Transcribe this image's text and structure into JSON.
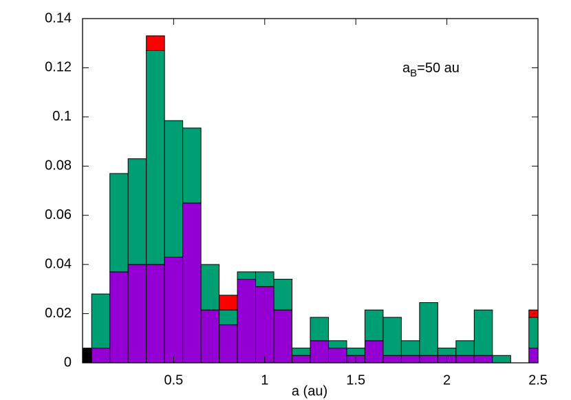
{
  "chart_data": {
    "type": "stacked_histogram",
    "xlabel": "a (au)",
    "annotation": [
      "a",
      "B",
      "=50 au"
    ],
    "bins": [
      0,
      0.05,
      0.15,
      0.25,
      0.35,
      0.45,
      0.55,
      0.65,
      0.75,
      0.85,
      0.95,
      1.05,
      1.15,
      1.25,
      1.35,
      1.45,
      1.55,
      1.65,
      1.75,
      1.85,
      1.95,
      2.05,
      2.15,
      2.25,
      2.35,
      2.45,
      2.5
    ],
    "series": [
      {
        "color": "#000000",
        "values": [
          0.006,
          0,
          0,
          0,
          0,
          0,
          0,
          0,
          0,
          0,
          0,
          0,
          0,
          0,
          0,
          0,
          0,
          0,
          0,
          0,
          0,
          0,
          0,
          0,
          0,
          0
        ]
      },
      {
        "color": "#9400d3",
        "values": [
          0,
          0.006,
          0.037,
          0.04,
          0.04,
          0.043,
          0.065,
          0.0215,
          0.0155,
          0.034,
          0.031,
          0.0215,
          0.003,
          0.009,
          0.006,
          0.003,
          0.009,
          0.003,
          0.003,
          0.003,
          0.003,
          0.003,
          0.003,
          0,
          0,
          0.006
        ]
      },
      {
        "color": "#009e73",
        "values": [
          0,
          0.022,
          0.04,
          0.043,
          0.087,
          0.0555,
          0.0305,
          0.0185,
          0.006,
          0.003,
          0.006,
          0.0125,
          0.003,
          0.0095,
          0.003,
          0.003,
          0.0125,
          0.0155,
          0.006,
          0.0215,
          0.003,
          0.006,
          0.0185,
          0.003,
          0,
          0.0125
        ]
      },
      {
        "color": "#ff0000",
        "values": [
          0,
          0,
          0,
          0,
          0.006,
          0,
          0,
          0,
          0.006,
          0,
          0,
          0,
          0,
          0,
          0,
          0,
          0,
          0,
          0,
          0,
          0,
          0,
          0,
          0,
          0,
          0.003
        ]
      }
    ],
    "xlim": [
      0,
      2.5
    ],
    "xticks": [
      0.5,
      1,
      1.5,
      2,
      2.5
    ],
    "ylim": [
      0,
      0.14
    ],
    "yticks": [
      0,
      0.02,
      0.04,
      0.06,
      0.08,
      0.1,
      0.12,
      0.14
    ]
  }
}
